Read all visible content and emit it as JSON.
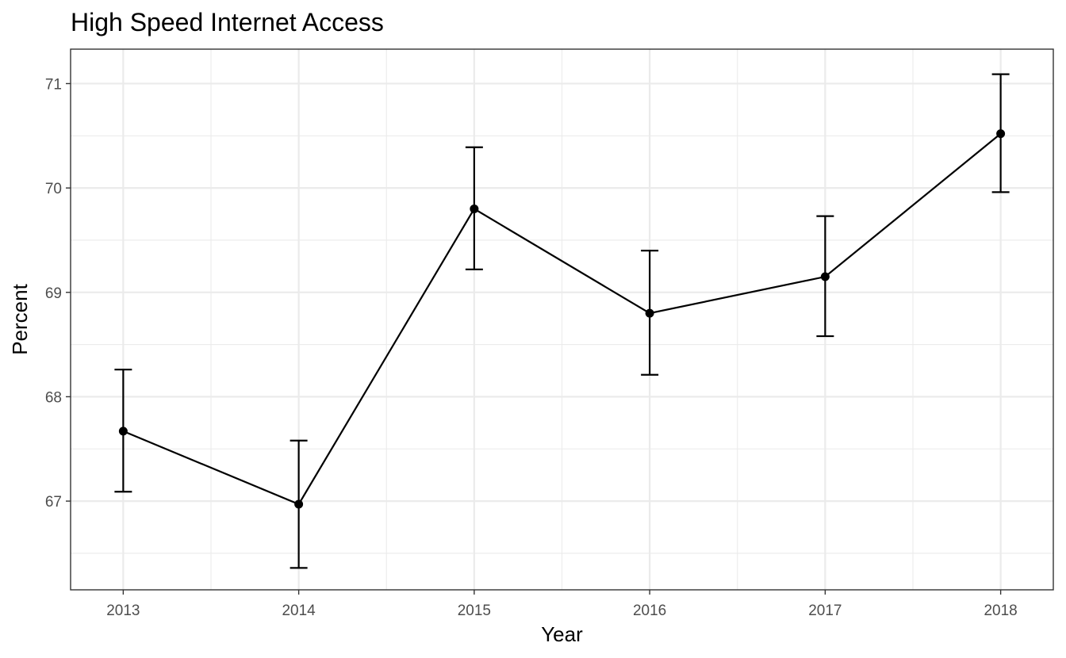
{
  "chart_data": {
    "type": "line",
    "title": "High Speed Internet Access",
    "xlabel": "Year",
    "ylabel": "Percent",
    "x": [
      2013,
      2014,
      2015,
      2016,
      2017,
      2018
    ],
    "x_tick_labels": [
      "2013",
      "2014",
      "2015",
      "2016",
      "2017",
      "2018"
    ],
    "y_ticks": [
      67,
      68,
      69,
      70,
      71
    ],
    "y_tick_labels": [
      "67",
      "68",
      "69",
      "70",
      "71"
    ],
    "xlim": [
      2012.7,
      2018.3
    ],
    "ylim": [
      66.15,
      71.33
    ],
    "grid": true,
    "legend": "none",
    "series": [
      {
        "values": [
          67.67,
          66.97,
          69.8,
          68.8,
          69.15,
          70.52
        ],
        "lower": [
          67.09,
          66.36,
          69.22,
          68.21,
          68.58,
          69.96
        ],
        "upper": [
          68.26,
          67.58,
          70.39,
          69.4,
          69.73,
          71.09
        ],
        "color": "#000000"
      }
    ]
  }
}
